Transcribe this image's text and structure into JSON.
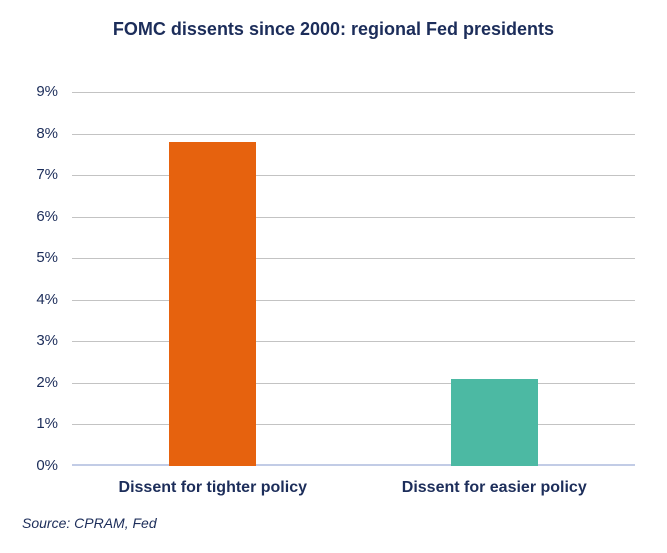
{
  "chart_data": {
    "type": "bar",
    "title": "FOMC dissents since 2000: regional Fed presidents",
    "categories": [
      "Dissent for tighter policy",
      "Dissent for easier policy"
    ],
    "values": [
      7.8,
      2.1
    ],
    "bar_colors": [
      "#e6620e",
      "#4cb9a3"
    ],
    "xlabel": "",
    "ylabel": "",
    "ylim": [
      0,
      9
    ],
    "ytick_step": 1,
    "ytick_labels": [
      "0%",
      "1%",
      "2%",
      "3%",
      "4%",
      "5%",
      "6%",
      "7%",
      "8%",
      "9%"
    ],
    "grid": true,
    "legend": false,
    "colors": {
      "text": "#1c2d5a",
      "gridline": "#c3c3c3",
      "zero_line": "#c2cce6",
      "background": "#ffffff"
    }
  },
  "source_note": "Source: CPRAM, Fed"
}
